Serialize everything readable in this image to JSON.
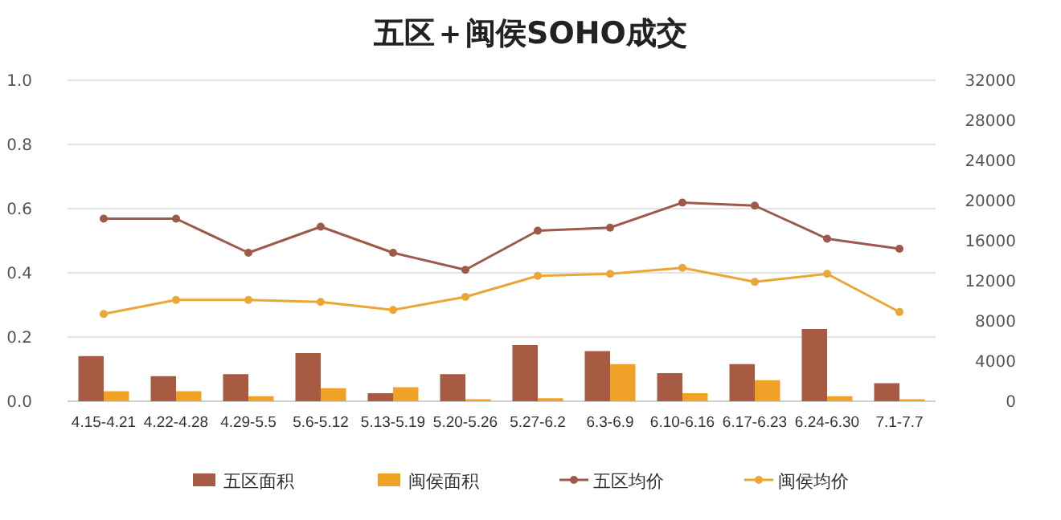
{
  "chart_data": {
    "type": "bar",
    "title": "五区＋闽侯SOHO成交",
    "categories": [
      "4.15-4.21",
      "4.22-4.28",
      "4.29-5.5",
      "5.6-5.12",
      "5.13-5.19",
      "5.20-5.26",
      "5.27-6.2",
      "6.3-6.9",
      "6.10-6.16",
      "6.17-6.23",
      "6.24-6.30",
      "7.1-7.7"
    ],
    "series": [
      {
        "name": "五区面积",
        "axis": "y2",
        "color": "#a65b42",
        "values": [
          4500,
          2500,
          2700,
          4800,
          800,
          2700,
          5600,
          5000,
          2800,
          3700,
          7200,
          1800
        ]
      },
      {
        "name": "闽侯面积",
        "axis": "y2",
        "color": "#f0a128",
        "values": [
          1000,
          1000,
          500,
          1300,
          1400,
          200,
          300,
          3700,
          800,
          2100,
          500,
          200
        ]
      },
      {
        "name": "五区均价",
        "type": "line",
        "axis": "y2",
        "color": "#9c5a4a",
        "marker": "circle",
        "values": [
          18200,
          18200,
          14800,
          17400,
          14800,
          13100,
          17000,
          17300,
          19800,
          19500,
          16200,
          15200
        ]
      },
      {
        "name": "闽侯均价",
        "type": "line",
        "axis": "y2",
        "color": "#eba735",
        "marker": "circle",
        "values": [
          8700,
          10100,
          10100,
          9900,
          9100,
          10400,
          12500,
          12700,
          13300,
          11900,
          12700,
          8900
        ]
      }
    ],
    "ylim": [
      0,
      1
    ],
    "yticks": [
      {
        "value": 0,
        "label": "0.0"
      },
      {
        "value": 0.2,
        "label": "0.2"
      },
      {
        "value": 0.4,
        "label": "0.4"
      },
      {
        "value": 0.6,
        "label": "0.6"
      },
      {
        "value": 0.8,
        "label": "0.8"
      },
      {
        "value": 1,
        "label": "1.0"
      }
    ],
    "y2lim": [
      0,
      32000
    ],
    "y2ticks": [
      0,
      4000,
      8000,
      12000,
      16000,
      20000,
      24000,
      28000,
      32000
    ],
    "grid": true,
    "legend": "bottom"
  }
}
